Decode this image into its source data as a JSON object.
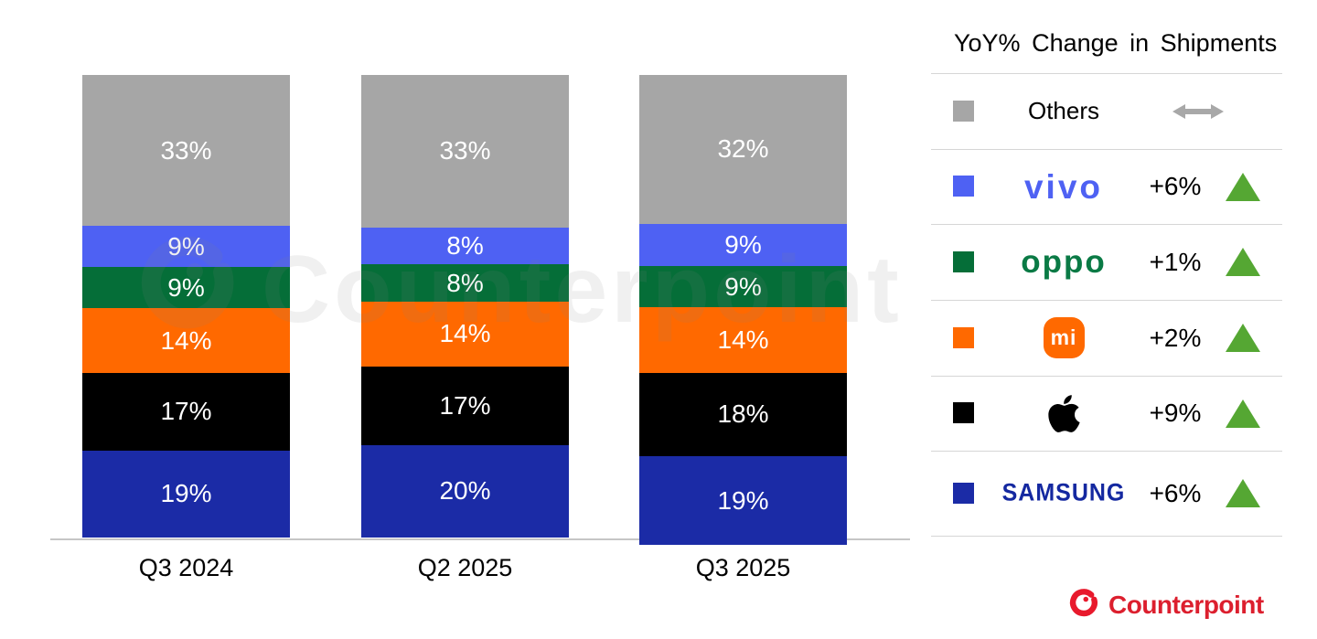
{
  "chart_data": {
    "type": "bar",
    "stacked": true,
    "title": "",
    "xlabel": "",
    "ylabel": "",
    "value_suffix": "%",
    "grid": false,
    "legend_position": "right",
    "categories": [
      "Q3 2024",
      "Q2 2025",
      "Q3 2025"
    ],
    "series": [
      {
        "name": "Samsung",
        "color": "#1b2ba6",
        "values": [
          19,
          20,
          19
        ]
      },
      {
        "name": "Apple",
        "color": "#000000",
        "values": [
          17,
          17,
          18
        ]
      },
      {
        "name": "Xiaomi",
        "color": "#ff6900",
        "values": [
          14,
          14,
          14
        ]
      },
      {
        "name": "OPPO",
        "color": "#056e38",
        "values": [
          9,
          8,
          9
        ]
      },
      {
        "name": "vivo",
        "color": "#4e61f3",
        "values": [
          9,
          8,
          9
        ]
      },
      {
        "name": "Others",
        "color": "#a6a6a6",
        "values": [
          33,
          33,
          32
        ]
      }
    ]
  },
  "legend": {
    "title": "YoY% Change in Shipments",
    "trend_up_color": "#55a733",
    "flat_arrow_color": "#a8a8a8",
    "rows": [
      {
        "name": "Others",
        "swatch": "#a6a6a6",
        "logo": "label",
        "logo_text": "Others",
        "change": "",
        "trend": "flat"
      },
      {
        "name": "vivo",
        "swatch": "#4e61f3",
        "logo": "vivo",
        "logo_text": "vivo",
        "change": "+6%",
        "trend": "up"
      },
      {
        "name": "OPPO",
        "swatch": "#056e38",
        "logo": "oppo",
        "logo_text": "oppo",
        "change": "+1%",
        "trend": "up"
      },
      {
        "name": "Xiaomi",
        "swatch": "#ff6900",
        "logo": "xiaomi",
        "logo_text": "mi",
        "change": "+2%",
        "trend": "up"
      },
      {
        "name": "Apple",
        "swatch": "#000000",
        "logo": "apple",
        "logo_text": "",
        "change": "+9%",
        "trend": "up"
      },
      {
        "name": "Samsung",
        "swatch": "#1b2ba6",
        "logo": "samsung",
        "logo_text": "SAMSUNG",
        "change": "+6%",
        "trend": "up"
      }
    ]
  },
  "watermark": {
    "text": "Counterpoint"
  },
  "footer": {
    "brand": "Counterpoint",
    "color": "#dc1f2e"
  }
}
